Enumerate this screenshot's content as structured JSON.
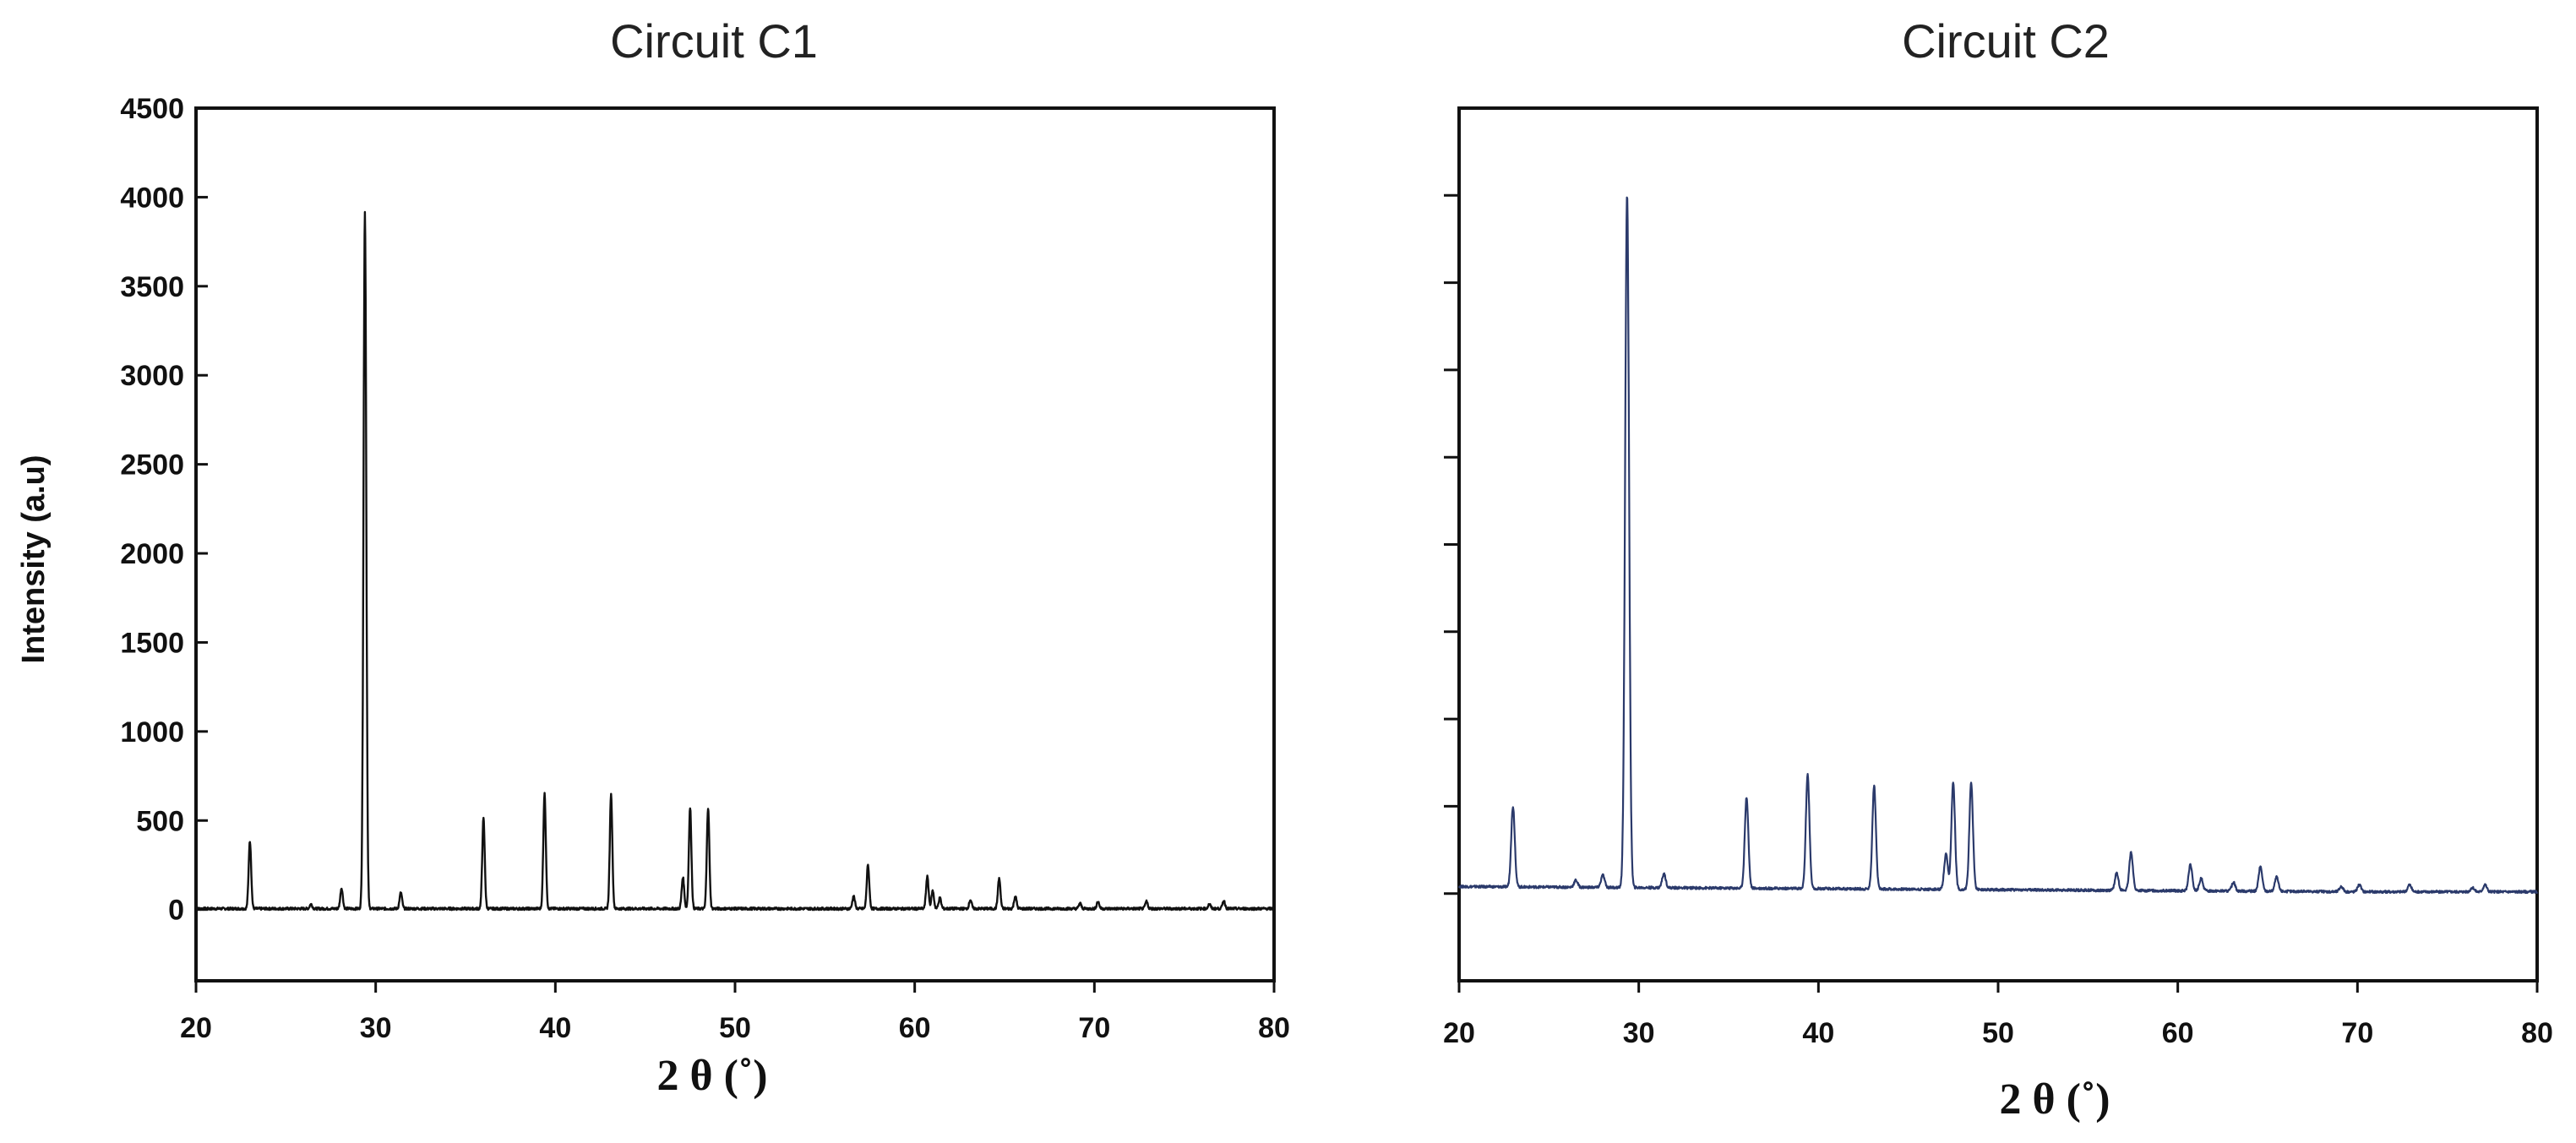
{
  "chart_data": [
    {
      "type": "line",
      "title": "Circuit C1",
      "xlabel": "2 θ (˚)",
      "ylabel": "Intensity (a.u)",
      "xlim": [
        20,
        80
      ],
      "ylim": [
        -400,
        4500
      ],
      "xticks": [
        20,
        30,
        40,
        50,
        60,
        70,
        80
      ],
      "yticks": [
        0,
        500,
        1000,
        1500,
        2000,
        2500,
        3000,
        3500,
        4000,
        4500
      ],
      "show_y_tick_labels": true,
      "line_color": "#111111",
      "grid": false,
      "baseline": 5,
      "peaks": [
        {
          "x": 23.0,
          "y": 380
        },
        {
          "x": 26.4,
          "y": 25
        },
        {
          "x": 28.1,
          "y": 115
        },
        {
          "x": 29.4,
          "y": 3910
        },
        {
          "x": 31.4,
          "y": 90
        },
        {
          "x": 36.0,
          "y": 505
        },
        {
          "x": 39.4,
          "y": 645
        },
        {
          "x": 43.1,
          "y": 640
        },
        {
          "x": 47.1,
          "y": 175
        },
        {
          "x": 47.5,
          "y": 565
        },
        {
          "x": 48.5,
          "y": 565
        },
        {
          "x": 56.6,
          "y": 70
        },
        {
          "x": 57.4,
          "y": 245
        },
        {
          "x": 60.7,
          "y": 180
        },
        {
          "x": 61.0,
          "y": 100
        },
        {
          "x": 61.4,
          "y": 60
        },
        {
          "x": 63.1,
          "y": 50
        },
        {
          "x": 64.7,
          "y": 170
        },
        {
          "x": 65.6,
          "y": 70
        },
        {
          "x": 69.2,
          "y": 30
        },
        {
          "x": 70.2,
          "y": 40
        },
        {
          "x": 72.9,
          "y": 40
        },
        {
          "x": 76.4,
          "y": 25
        },
        {
          "x": 77.2,
          "y": 45
        }
      ]
    },
    {
      "type": "line",
      "title": "Circuit C2",
      "xlabel": "2 θ (˚)",
      "ylabel": "",
      "xlim": [
        20,
        80
      ],
      "ylim": [
        -500,
        4500
      ],
      "xticks": [
        20,
        30,
        40,
        50,
        60,
        70,
        80
      ],
      "yticks": [
        0,
        500,
        1000,
        1500,
        2000,
        2500,
        3000,
        3500,
        4000
      ],
      "show_y_tick_labels": false,
      "line_color": "#2b3a6b",
      "grid": false,
      "baseline": 10,
      "peaks": [
        {
          "x": 23.0,
          "y": 460
        },
        {
          "x": 26.5,
          "y": 40
        },
        {
          "x": 28.0,
          "y": 70
        },
        {
          "x": 29.35,
          "y": 3970
        },
        {
          "x": 31.4,
          "y": 80
        },
        {
          "x": 36.0,
          "y": 520
        },
        {
          "x": 39.4,
          "y": 650
        },
        {
          "x": 43.1,
          "y": 590
        },
        {
          "x": 47.1,
          "y": 200
        },
        {
          "x": 47.5,
          "y": 610
        },
        {
          "x": 48.5,
          "y": 610
        },
        {
          "x": 56.6,
          "y": 100
        },
        {
          "x": 57.4,
          "y": 220
        },
        {
          "x": 60.7,
          "y": 150
        },
        {
          "x": 61.3,
          "y": 70
        },
        {
          "x": 63.1,
          "y": 50
        },
        {
          "x": 64.6,
          "y": 140
        },
        {
          "x": 65.5,
          "y": 80
        },
        {
          "x": 69.1,
          "y": 30
        },
        {
          "x": 70.1,
          "y": 40
        },
        {
          "x": 72.9,
          "y": 40
        },
        {
          "x": 76.4,
          "y": 25
        },
        {
          "x": 77.1,
          "y": 40
        }
      ]
    }
  ]
}
